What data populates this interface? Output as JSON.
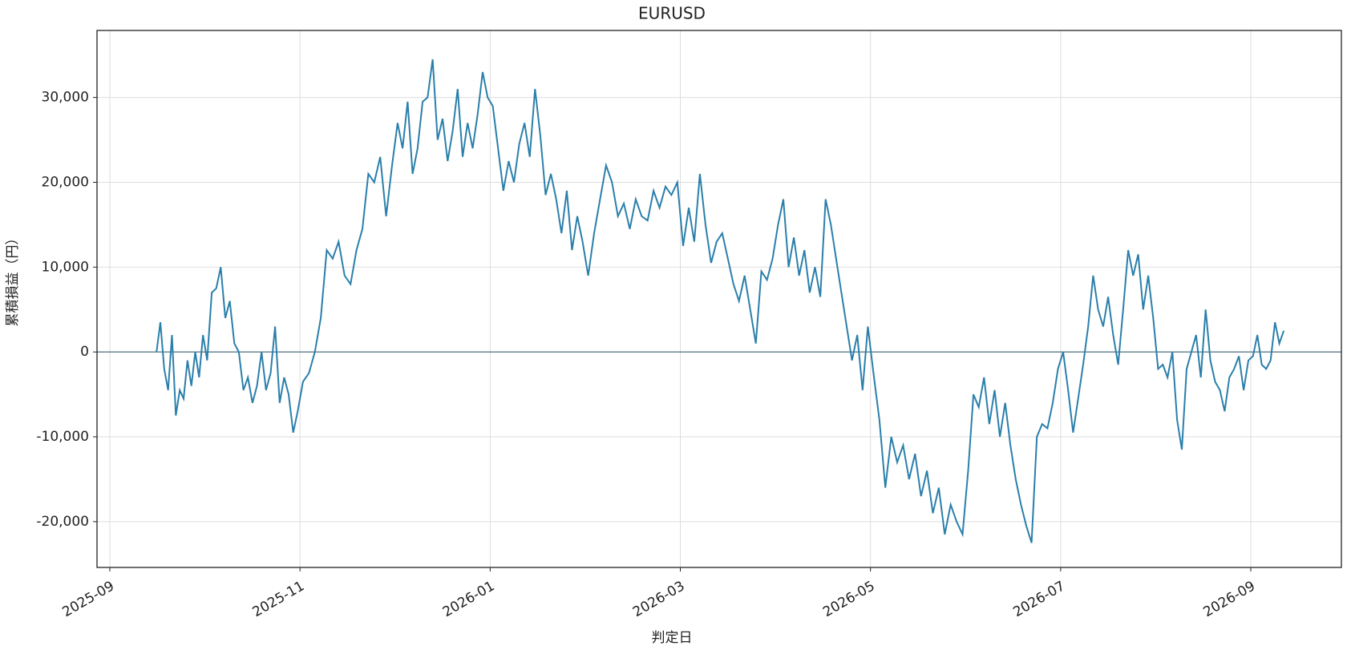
{
  "chart_data": {
    "type": "line",
    "title": "EURUSD",
    "x_label": "判定日",
    "y_label": "累積損益（円）",
    "x": [
      "2025-09",
      "2025-09",
      "2025-09",
      "2025-09",
      "2025-09",
      "2025-09",
      "2025-09",
      "2025-09",
      "2025-09",
      "2025-09",
      "2025-09",
      "2025-09",
      "2025-09",
      "2025-10",
      "2025-10",
      "2025-10",
      "2025-10",
      "2025-10",
      "2025-10",
      "2025-10",
      "2025-10",
      "2025-10",
      "2025-10",
      "2025-10",
      "2025-10",
      "2025-10",
      "2025-10",
      "2025-10",
      "2025-10",
      "2025-10",
      "2025-10",
      "2025-10",
      "2025-10",
      "2025-10",
      "2025-11",
      "2025-11",
      "2025-11",
      "2025-11",
      "2025-11",
      "2025-11",
      "2025-11",
      "2025-11",
      "2025-11",
      "2025-11",
      "2025-11",
      "2025-11",
      "2025-11",
      "2025-11",
      "2025-11",
      "2025-11",
      "2025-12",
      "2025-12",
      "2025-12",
      "2025-12",
      "2025-12",
      "2025-12",
      "2025-12",
      "2025-12",
      "2025-12",
      "2025-12",
      "2025-12",
      "2025-12",
      "2025-12",
      "2025-12",
      "2025-12",
      "2025-12",
      "2025-12",
      "2025-12",
      "2025-12",
      "2026-01",
      "2026-01",
      "2026-01",
      "2026-01",
      "2026-01",
      "2026-01",
      "2026-01",
      "2026-01",
      "2026-01",
      "2026-01",
      "2026-01",
      "2026-01",
      "2026-01",
      "2026-01",
      "2026-01",
      "2026-01",
      "2026-01",
      "2026-01",
      "2026-02",
      "2026-02",
      "2026-02",
      "2026-02",
      "2026-02",
      "2026-02",
      "2026-02",
      "2026-02",
      "2026-02",
      "2026-02",
      "2026-02",
      "2026-02",
      "2026-02",
      "2026-02",
      "2026-02",
      "2026-02",
      "2026-03",
      "2026-03",
      "2026-03",
      "2026-03",
      "2026-03",
      "2026-03",
      "2026-03",
      "2026-03",
      "2026-03",
      "2026-03",
      "2026-03",
      "2026-03",
      "2026-03",
      "2026-03",
      "2026-03",
      "2026-03",
      "2026-03",
      "2026-04",
      "2026-04",
      "2026-04",
      "2026-04",
      "2026-04",
      "2026-04",
      "2026-04",
      "2026-04",
      "2026-04",
      "2026-04",
      "2026-04",
      "2026-04",
      "2026-04",
      "2026-04",
      "2026-04",
      "2026-04",
      "2026-04",
      "2026-04",
      "2026-05",
      "2026-05",
      "2026-05",
      "2026-05",
      "2026-05",
      "2026-05",
      "2026-05",
      "2026-05",
      "2026-05",
      "2026-05",
      "2026-05",
      "2026-05",
      "2026-05",
      "2026-05",
      "2026-05",
      "2026-05",
      "2026-06",
      "2026-06",
      "2026-06",
      "2026-06",
      "2026-06",
      "2026-06",
      "2026-06",
      "2026-06",
      "2026-06",
      "2026-06",
      "2026-06",
      "2026-06",
      "2026-06",
      "2026-06",
      "2026-06",
      "2026-06",
      "2026-06",
      "2026-06",
      "2026-07",
      "2026-07",
      "2026-07",
      "2026-07",
      "2026-07",
      "2026-07",
      "2026-07",
      "2026-07",
      "2026-07",
      "2026-07",
      "2026-07",
      "2026-07",
      "2026-07",
      "2026-07",
      "2026-07",
      "2026-07",
      "2026-07",
      "2026-07",
      "2026-07",
      "2026-08",
      "2026-08",
      "2026-08",
      "2026-08",
      "2026-08",
      "2026-08",
      "2026-08",
      "2026-08",
      "2026-08",
      "2026-08",
      "2026-08",
      "2026-08",
      "2026-08",
      "2026-08",
      "2026-08",
      "2026-08",
      "2026-08",
      "2026-08",
      "2026-08",
      "2026-08",
      "2026-09",
      "2026-09",
      "2026-09",
      "2026-09",
      "2026-09",
      "2026-09",
      "2026-09",
      "2026-09"
    ],
    "values": [
      0,
      3500,
      -2000,
      -4500,
      2000,
      -7500,
      -4500,
      -5500,
      -1000,
      -4000,
      0,
      -3000,
      2000,
      -1000,
      7000,
      7500,
      10000,
      4000,
      6000,
      1000,
      0,
      -4500,
      -3000,
      -6000,
      -4000,
      0,
      -4500,
      -2500,
      3000,
      -6000,
      -3000,
      -5000,
      -9500,
      -7000,
      -3500,
      -2500,
      0,
      4000,
      12000,
      11000,
      13000,
      9000,
      8000,
      12000,
      14500,
      21000,
      20000,
      23000,
      16000,
      22000,
      27000,
      24000,
      29500,
      21000,
      24000,
      29500,
      30000,
      34500,
      25000,
      27500,
      22500,
      26000,
      31000,
      23000,
      27000,
      24000,
      28000,
      33000,
      30000,
      29000,
      24000,
      19000,
      22500,
      20000,
      24500,
      27000,
      23000,
      31000,
      25500,
      18500,
      21000,
      18000,
      14000,
      19000,
      12000,
      16000,
      13000,
      9000,
      14000,
      18000,
      22000,
      20000,
      16000,
      17500,
      14500,
      18000,
      16000,
      15500,
      19000,
      17000,
      19500,
      18500,
      20000,
      12500,
      17000,
      13000,
      21000,
      15000,
      10500,
      13000,
      14000,
      11000,
      8000,
      6000,
      9000,
      5000,
      1000,
      9500,
      8500,
      11000,
      15000,
      18000,
      10000,
      13500,
      9000,
      12000,
      7000,
      10000,
      6500,
      18000,
      15000,
      11000,
      7000,
      3000,
      -1000,
      2000,
      -4500,
      3000,
      -2500,
      -8000,
      -16000,
      -10000,
      -13000,
      -11000,
      -15000,
      -12000,
      -17000,
      -14000,
      -19000,
      -16000,
      -21500,
      -18000,
      -20000,
      -21500,
      -14000,
      -5000,
      -6500,
      -3000,
      -8500,
      -4500,
      -10000,
      -6000,
      -11000,
      -15000,
      -18000,
      -20500,
      -22500,
      -10000,
      -8500,
      -9000,
      -6000,
      -2000,
      0,
      -4500,
      -9500,
      -5500,
      -1500,
      3000,
      9000,
      5000,
      3000,
      6500,
      2000,
      -1500,
      5000,
      12000,
      9000,
      11500,
      5000,
      9000,
      4000,
      -2000,
      -1500,
      -3000,
      0,
      -8000,
      -11500,
      -2000,
      0,
      2000,
      -3000,
      5000,
      -1000,
      -3500,
      -4500,
      -7000,
      -3000,
      -2000,
      -500,
      -4500,
      -1000,
      -500,
      2000,
      -1500,
      -2000,
      -1000,
      3500,
      1000,
      2500
    ],
    "color": "#2a7fab",
    "xlim": [
      "2025-09",
      "2026-09"
    ],
    "xticks": [
      "2025-09",
      "2025-11",
      "2026-01",
      "2026-03",
      "2026-05",
      "2026-07",
      "2026-09"
    ],
    "ylim": [
      -25400,
      37900
    ],
    "yticks": [
      {
        "value": -20000,
        "label": "-20,000"
      },
      {
        "value": -10000,
        "label": "-10,000"
      },
      0,
      {
        "value": 10000,
        "label": "10,000"
      },
      {
        "value": 20000,
        "label": "20,000"
      },
      {
        "value": 30000,
        "label": "30,000"
      }
    ],
    "grid": true,
    "zero_line": true
  }
}
